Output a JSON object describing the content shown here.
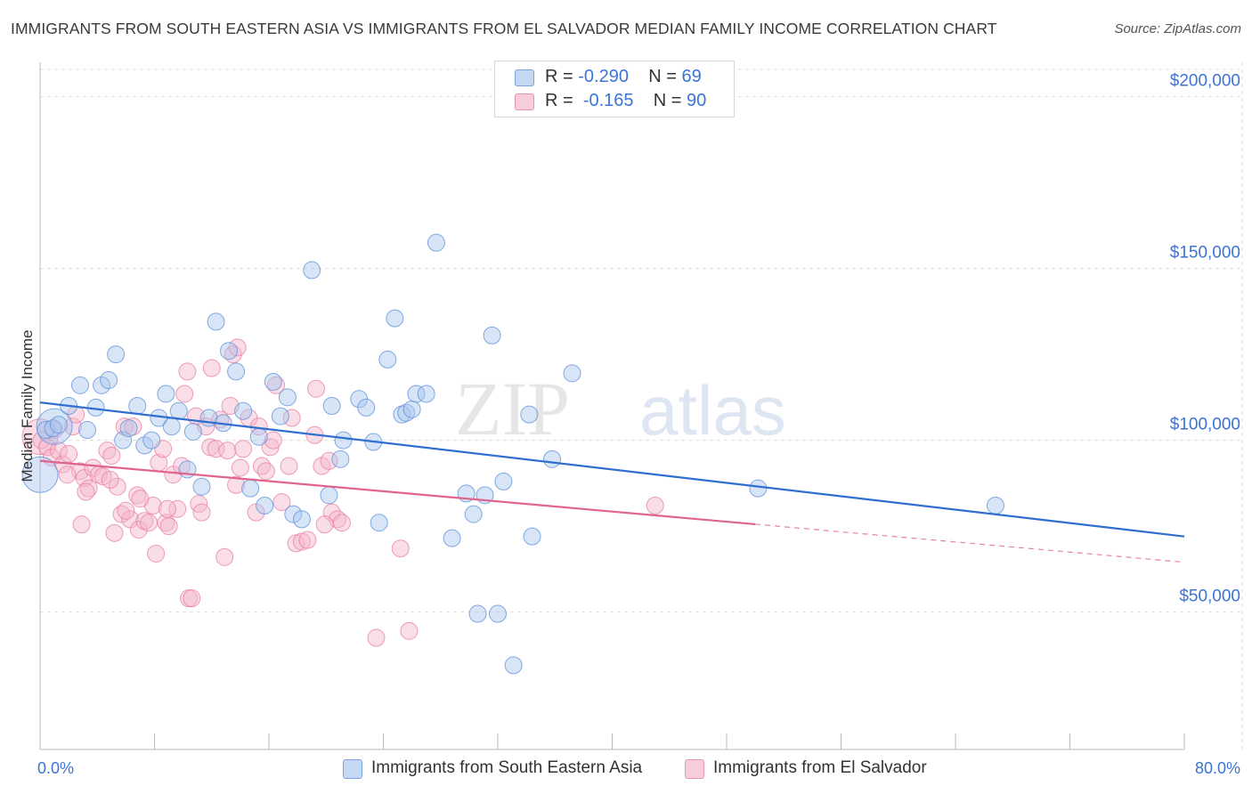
{
  "header": {
    "title": "IMMIGRANTS FROM SOUTH EASTERN ASIA VS IMMIGRANTS FROM EL SALVADOR MEDIAN FAMILY INCOME CORRELATION CHART",
    "source": "Source: ZipAtlas.com"
  },
  "watermark": "ZIPatlas",
  "legend": {
    "rows": [
      {
        "r_label": "R =",
        "r_value": "-0.290",
        "n_label": "N =",
        "n_value": "69"
      },
      {
        "r_label": "R =",
        "r_value": "-0.165",
        "n_label": "N =",
        "n_value": "90"
      }
    ]
  },
  "colors": {
    "blue": "#5b8fd9",
    "blue_fill": "#a9c6ee",
    "blue_line": "#2f6fd0",
    "pink": "#e87ea0",
    "pink_fill": "#f5b6ca",
    "pink_line": "#e0648f",
    "axis_text": "#3b74d6",
    "grid": "#dddddd"
  },
  "chart_data": {
    "type": "scatter",
    "xlabel": "",
    "ylabel": "Median Family Income",
    "xlim": [
      0,
      80
    ],
    "ylim": [
      10000,
      210000
    ],
    "x_tick_labels": [
      "0.0%",
      "80.0%"
    ],
    "y_ticks": [
      50000,
      100000,
      150000,
      200000
    ],
    "y_tick_labels": [
      "$50,000",
      "$100,000",
      "$150,000",
      "$200,000"
    ],
    "grid": true,
    "legend_position": "top-center",
    "series": [
      {
        "name": "Immigrants from South Eastern Asia",
        "color": "blue",
        "r": -0.29,
        "n": 69,
        "trend": {
          "x": [
            0,
            80
          ],
          "y": [
            111000,
            72000
          ],
          "dashed_from": null
        },
        "points": [
          {
            "x": 0.0,
            "y": 90000,
            "big": true
          },
          {
            "x": 1.0,
            "y": 104000,
            "big": true
          },
          {
            "x": 0.4,
            "y": 103000
          },
          {
            "x": 0.9,
            "y": 103500
          },
          {
            "x": 1.3,
            "y": 104500
          },
          {
            "x": 2.0,
            "y": 110000
          },
          {
            "x": 2.8,
            "y": 116000
          },
          {
            "x": 3.3,
            "y": 103000
          },
          {
            "x": 3.9,
            "y": 109500
          },
          {
            "x": 4.3,
            "y": 116000
          },
          {
            "x": 4.8,
            "y": 117500
          },
          {
            "x": 5.3,
            "y": 125000
          },
          {
            "x": 5.8,
            "y": 100000
          },
          {
            "x": 6.2,
            "y": 103500
          },
          {
            "x": 6.8,
            "y": 110000
          },
          {
            "x": 7.3,
            "y": 98500
          },
          {
            "x": 7.8,
            "y": 100000
          },
          {
            "x": 8.3,
            "y": 106500
          },
          {
            "x": 8.8,
            "y": 113500
          },
          {
            "x": 9.2,
            "y": 104000
          },
          {
            "x": 9.7,
            "y": 108500
          },
          {
            "x": 10.3,
            "y": 91500
          },
          {
            "x": 10.7,
            "y": 102500
          },
          {
            "x": 11.3,
            "y": 86500
          },
          {
            "x": 11.8,
            "y": 106500
          },
          {
            "x": 12.3,
            "y": 134500
          },
          {
            "x": 12.8,
            "y": 105000
          },
          {
            "x": 13.2,
            "y": 126000
          },
          {
            "x": 13.7,
            "y": 120000
          },
          {
            "x": 14.2,
            "y": 108500
          },
          {
            "x": 14.7,
            "y": 86000
          },
          {
            "x": 15.3,
            "y": 101000
          },
          {
            "x": 15.7,
            "y": 81000
          },
          {
            "x": 16.3,
            "y": 117000
          },
          {
            "x": 16.8,
            "y": 107000
          },
          {
            "x": 17.3,
            "y": 112500
          },
          {
            "x": 17.7,
            "y": 78500
          },
          {
            "x": 18.3,
            "y": 77000
          },
          {
            "x": 19.0,
            "y": 149500
          },
          {
            "x": 20.2,
            "y": 84000
          },
          {
            "x": 20.4,
            "y": 110000
          },
          {
            "x": 21.2,
            "y": 100000
          },
          {
            "x": 21.0,
            "y": 94500
          },
          {
            "x": 22.3,
            "y": 112000
          },
          {
            "x": 22.8,
            "y": 109500
          },
          {
            "x": 23.3,
            "y": 99500
          },
          {
            "x": 23.7,
            "y": 76000
          },
          {
            "x": 24.3,
            "y": 123500
          },
          {
            "x": 24.8,
            "y": 135500
          },
          {
            "x": 25.3,
            "y": 107500
          },
          {
            "x": 25.6,
            "y": 108000
          },
          {
            "x": 26.0,
            "y": 109000
          },
          {
            "x": 26.3,
            "y": 113500
          },
          {
            "x": 27.0,
            "y": 113500
          },
          {
            "x": 27.7,
            "y": 157500
          },
          {
            "x": 28.8,
            "y": 71500
          },
          {
            "x": 29.8,
            "y": 84500
          },
          {
            "x": 30.3,
            "y": 78500
          },
          {
            "x": 30.6,
            "y": 49500
          },
          {
            "x": 31.1,
            "y": 84000
          },
          {
            "x": 31.6,
            "y": 130500
          },
          {
            "x": 32.0,
            "y": 49500
          },
          {
            "x": 32.4,
            "y": 88000
          },
          {
            "x": 33.1,
            "y": 34500
          },
          {
            "x": 34.2,
            "y": 107500
          },
          {
            "x": 34.4,
            "y": 72000
          },
          {
            "x": 35.8,
            "y": 94500
          },
          {
            "x": 37.2,
            "y": 119500
          },
          {
            "x": 50.2,
            "y": 86000
          },
          {
            "x": 66.8,
            "y": 81000
          }
        ]
      },
      {
        "name": "Immigrants from El Salvador",
        "color": "pink",
        "r": -0.165,
        "n": 90,
        "trend": {
          "x": [
            0,
            80
          ],
          "y": [
            94000,
            64500
          ],
          "dashed_from": 50
        }
      }
    ],
    "pink_points": [
      {
        "x": 0.0,
        "y": 101000,
        "big": true
      },
      {
        "x": 0.1,
        "y": 100000
      },
      {
        "x": 0.5,
        "y": 98000
      },
      {
        "x": 0.8,
        "y": 95000
      },
      {
        "x": 1.0,
        "y": 103000
      },
      {
        "x": 1.3,
        "y": 97000
      },
      {
        "x": 1.6,
        "y": 93000
      },
      {
        "x": 2.0,
        "y": 96000
      },
      {
        "x": 2.3,
        "y": 104000
      },
      {
        "x": 2.8,
        "y": 91000
      },
      {
        "x": 3.1,
        "y": 89000
      },
      {
        "x": 3.4,
        "y": 86000
      },
      {
        "x": 3.7,
        "y": 92000
      },
      {
        "x": 4.1,
        "y": 90000
      },
      {
        "x": 4.4,
        "y": 89500
      },
      {
        "x": 4.7,
        "y": 97000
      },
      {
        "x": 5.0,
        "y": 95500
      },
      {
        "x": 5.2,
        "y": 73000
      },
      {
        "x": 2.9,
        "y": 75500
      },
      {
        "x": 5.4,
        "y": 86500
      },
      {
        "x": 5.7,
        "y": 78500
      },
      {
        "x": 5.9,
        "y": 104000
      },
      {
        "x": 6.3,
        "y": 77000
      },
      {
        "x": 6.5,
        "y": 104000
      },
      {
        "x": 6.8,
        "y": 84000
      },
      {
        "x": 6.9,
        "y": 74000
      },
      {
        "x": 7.3,
        "y": 76500
      },
      {
        "x": 7.6,
        "y": 76000
      },
      {
        "x": 7.9,
        "y": 81000
      },
      {
        "x": 8.1,
        "y": 67000
      },
      {
        "x": 8.3,
        "y": 93500
      },
      {
        "x": 8.6,
        "y": 97500
      },
      {
        "x": 8.8,
        "y": 76000
      },
      {
        "x": 9.0,
        "y": 75000
      },
      {
        "x": 9.3,
        "y": 90000
      },
      {
        "x": 9.6,
        "y": 80000
      },
      {
        "x": 9.9,
        "y": 92500
      },
      {
        "x": 10.1,
        "y": 113500
      },
      {
        "x": 10.3,
        "y": 120000
      },
      {
        "x": 10.4,
        "y": 54000
      },
      {
        "x": 10.6,
        "y": 54000
      },
      {
        "x": 10.9,
        "y": 107000
      },
      {
        "x": 11.1,
        "y": 81500
      },
      {
        "x": 11.3,
        "y": 79000
      },
      {
        "x": 11.6,
        "y": 104000
      },
      {
        "x": 11.9,
        "y": 98000
      },
      {
        "x": 12.0,
        "y": 121000
      },
      {
        "x": 12.3,
        "y": 97500
      },
      {
        "x": 12.6,
        "y": 106000
      },
      {
        "x": 12.9,
        "y": 66000
      },
      {
        "x": 13.1,
        "y": 97000
      },
      {
        "x": 13.3,
        "y": 110000
      },
      {
        "x": 13.5,
        "y": 125000
      },
      {
        "x": 13.7,
        "y": 87000
      },
      {
        "x": 13.8,
        "y": 127000
      },
      {
        "x": 14.2,
        "y": 97500
      },
      {
        "x": 14.6,
        "y": 106500
      },
      {
        "x": 15.1,
        "y": 79000
      },
      {
        "x": 15.3,
        "y": 104000
      },
      {
        "x": 15.5,
        "y": 92500
      },
      {
        "x": 15.8,
        "y": 91000
      },
      {
        "x": 16.1,
        "y": 98000
      },
      {
        "x": 16.3,
        "y": 100000
      },
      {
        "x": 16.5,
        "y": 116000
      },
      {
        "x": 16.9,
        "y": 82000
      },
      {
        "x": 17.4,
        "y": 92500
      },
      {
        "x": 17.6,
        "y": 106500
      },
      {
        "x": 17.9,
        "y": 70000
      },
      {
        "x": 18.3,
        "y": 70500
      },
      {
        "x": 18.7,
        "y": 71000
      },
      {
        "x": 19.2,
        "y": 101500
      },
      {
        "x": 19.3,
        "y": 115000
      },
      {
        "x": 19.7,
        "y": 92500
      },
      {
        "x": 20.2,
        "y": 94000
      },
      {
        "x": 20.4,
        "y": 79000
      },
      {
        "x": 20.8,
        "y": 77000
      },
      {
        "x": 21.1,
        "y": 76000
      },
      {
        "x": 23.5,
        "y": 42500
      },
      {
        "x": 25.2,
        "y": 68500
      },
      {
        "x": 25.8,
        "y": 44500
      },
      {
        "x": 43.0,
        "y": 81000
      },
      {
        "x": 1.9,
        "y": 90000
      },
      {
        "x": 2.5,
        "y": 107500
      },
      {
        "x": 3.2,
        "y": 85000
      },
      {
        "x": 4.9,
        "y": 88500
      },
      {
        "x": 6.0,
        "y": 79500
      },
      {
        "x": 7.0,
        "y": 83000
      },
      {
        "x": 8.9,
        "y": 80000
      },
      {
        "x": 14.0,
        "y": 92000
      },
      {
        "x": 19.9,
        "y": 75500
      }
    ]
  }
}
